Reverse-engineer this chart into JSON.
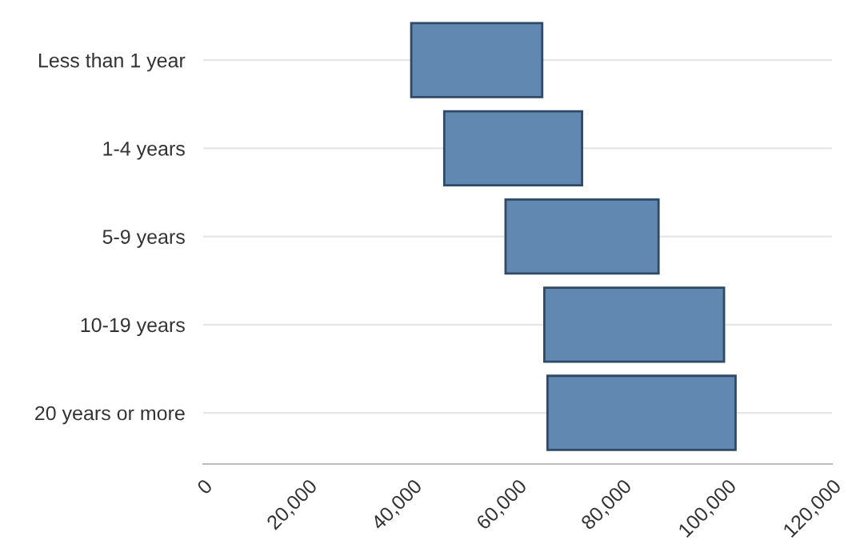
{
  "chart_data": {
    "type": "bar",
    "orientation": "horizontal",
    "categories": [
      "Less than 1 year",
      "1-4 years",
      "5-9 years",
      "10-19 years",
      "20 years or more"
    ],
    "base": [
      39700,
      46000,
      57700,
      65100,
      65700
    ],
    "values": [
      25000,
      26300,
      29200,
      34300,
      35900
    ],
    "color": "#6088b0",
    "xlim": [
      0,
      120000
    ],
    "xticks": [
      0,
      {
        "value": 20000,
        "label": "20,000"
      },
      {
        "value": 40000,
        "label": "40,000"
      },
      {
        "value": 60000,
        "label": "60,000"
      },
      {
        "value": 80000,
        "label": "80,000"
      },
      {
        "value": 100000,
        "label": "100,000"
      },
      {
        "value": 120000,
        "label": "120,000"
      }
    ],
    "grid": "y"
  }
}
